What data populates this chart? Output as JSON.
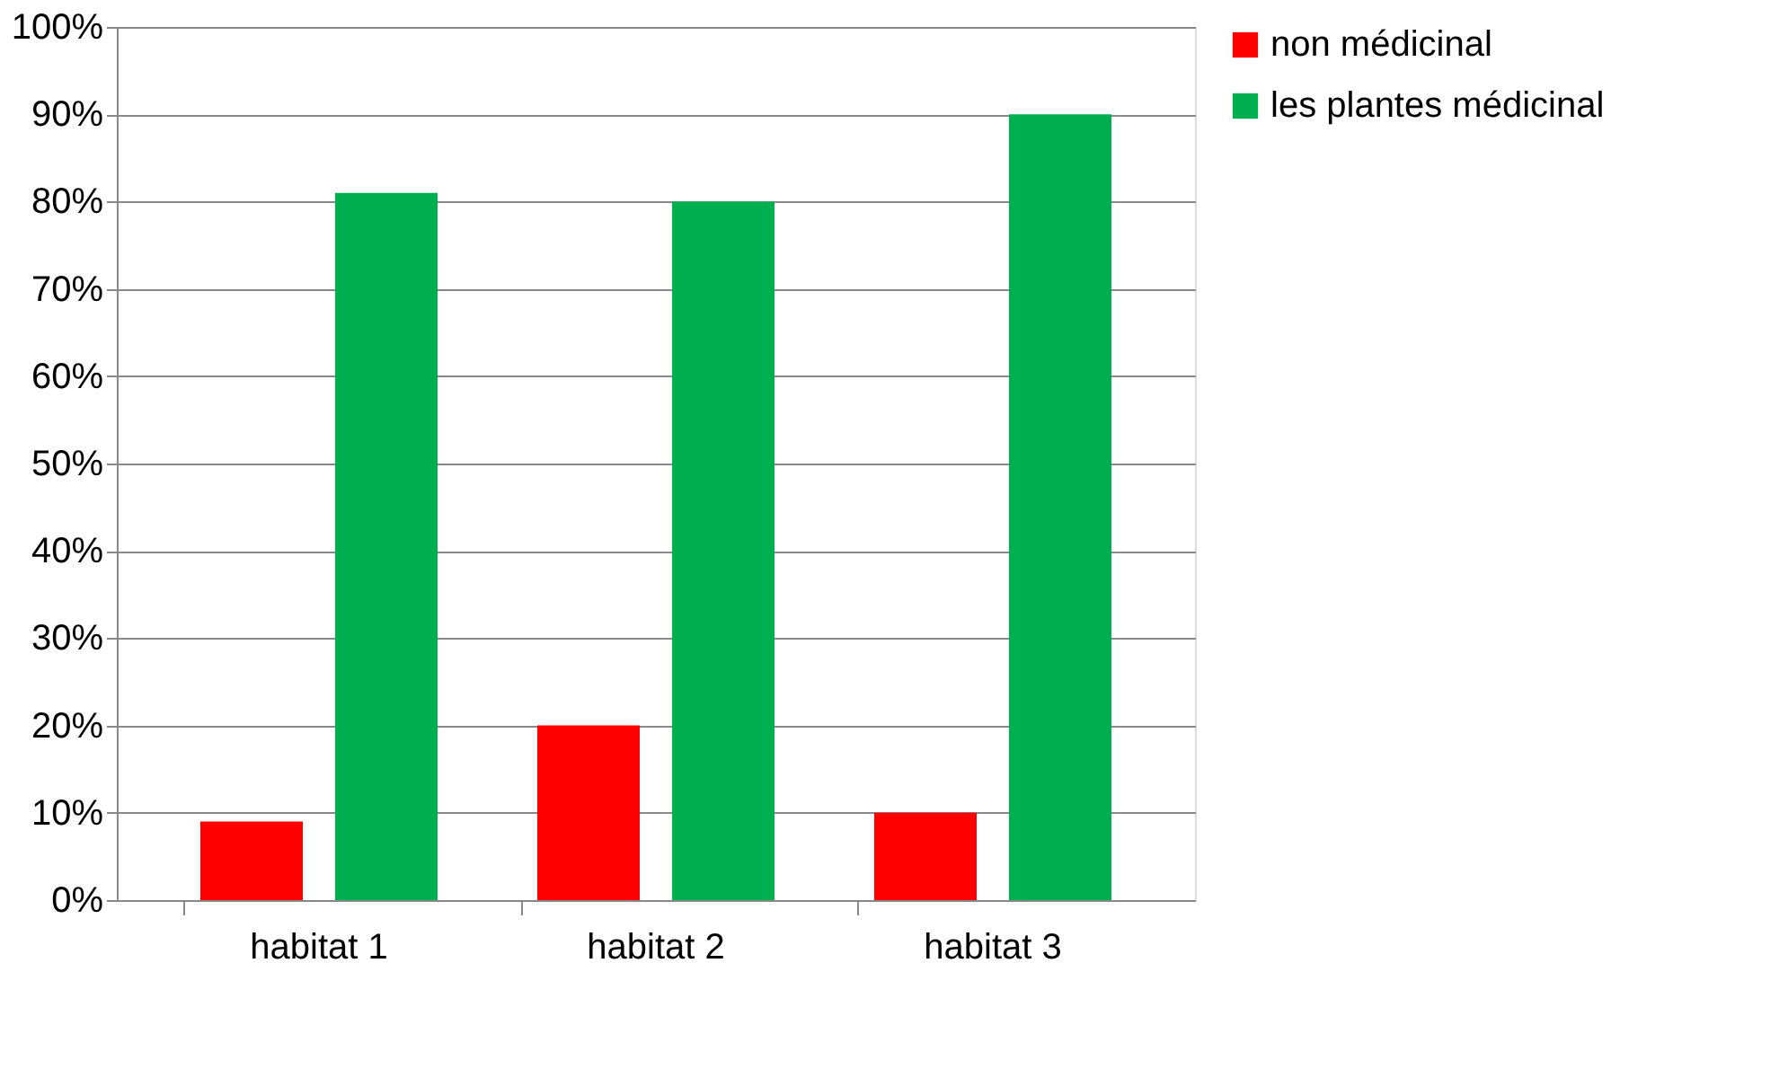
{
  "chart_data": {
    "type": "bar",
    "categories": [
      "habitat 1",
      "habitat 2",
      "habitat 3"
    ],
    "series": [
      {
        "name": "non médicinal",
        "color": "#ff0000",
        "values": [
          9,
          20,
          10
        ]
      },
      {
        "name": "les plantes médicinal",
        "color": "#00b050",
        "values": [
          81,
          80,
          90
        ]
      }
    ],
    "ylim": [
      0,
      100
    ],
    "yticks": [
      {
        "value": 0,
        "label": "0%"
      },
      {
        "value": 10,
        "label": "10%"
      },
      {
        "value": 20,
        "label": "20%"
      },
      {
        "value": 30,
        "label": "30%"
      },
      {
        "value": 40,
        "label": "40%"
      },
      {
        "value": 50,
        "label": "50%"
      },
      {
        "value": 60,
        "label": "60%"
      },
      {
        "value": 70,
        "label": "70%"
      },
      {
        "value": 80,
        "label": "80%"
      },
      {
        "value": 90,
        "label": "90%"
      },
      {
        "value": 100,
        "label": "100%"
      }
    ],
    "grid": "y",
    "legend": "right"
  }
}
